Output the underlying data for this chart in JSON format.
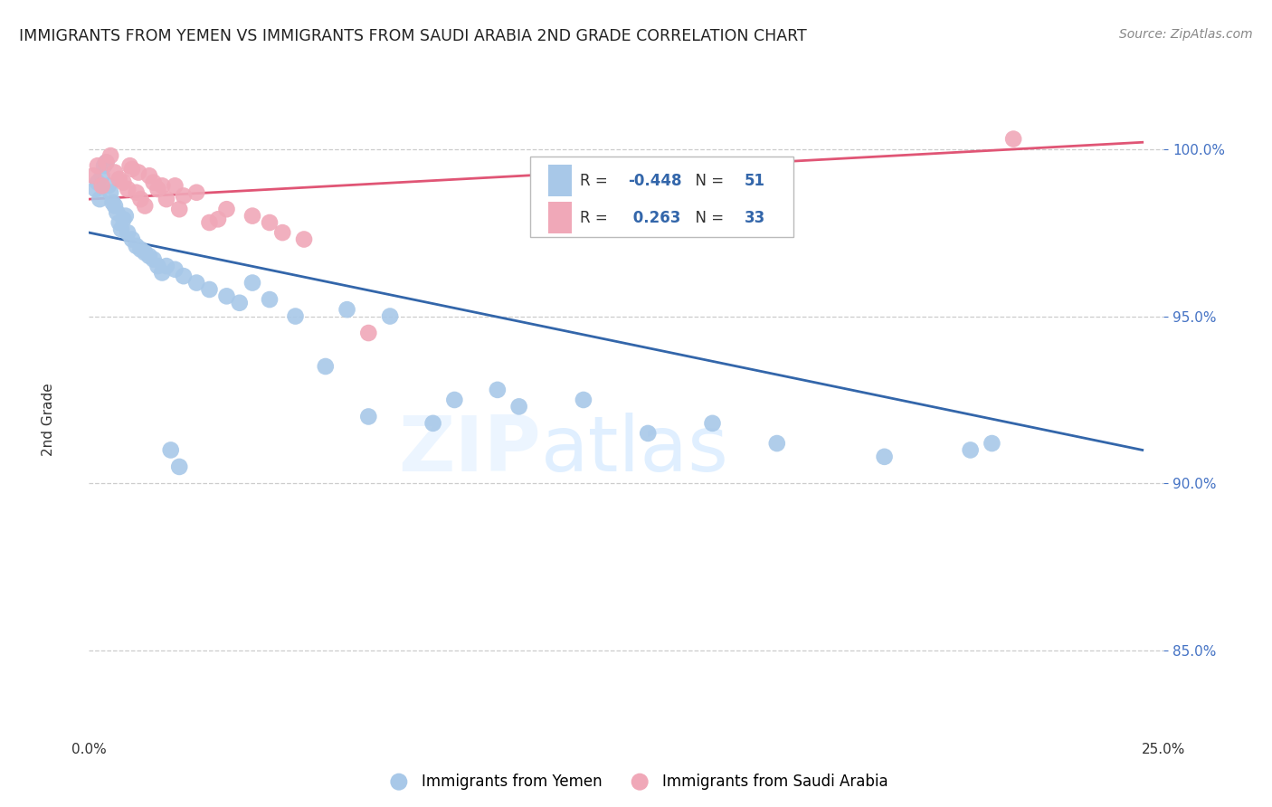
{
  "title": "IMMIGRANTS FROM YEMEN VS IMMIGRANTS FROM SAUDI ARABIA 2ND GRADE CORRELATION CHART",
  "source": "Source: ZipAtlas.com",
  "ylabel": "2nd Grade",
  "xmin": 0.0,
  "xmax": 25.0,
  "ymin": 82.5,
  "ymax": 101.8,
  "R_blue": -0.448,
  "N_blue": 51,
  "R_pink": 0.263,
  "N_pink": 33,
  "blue_color": "#a8c8e8",
  "pink_color": "#f0a8b8",
  "blue_line_color": "#3366aa",
  "pink_line_color": "#e05575",
  "legend_label_blue": "Immigrants from Yemen",
  "legend_label_pink": "Immigrants from Saudi Arabia",
  "blue_x": [
    0.15,
    0.2,
    0.25,
    0.3,
    0.35,
    0.4,
    0.45,
    0.5,
    0.55,
    0.6,
    0.65,
    0.7,
    0.75,
    0.8,
    0.85,
    0.9,
    1.0,
    1.1,
    1.2,
    1.3,
    1.4,
    1.5,
    1.6,
    1.7,
    1.8,
    2.0,
    2.2,
    2.5,
    2.8,
    3.2,
    3.5,
    3.8,
    4.2,
    4.8,
    5.5,
    6.0,
    7.0,
    8.5,
    9.5,
    10.0,
    11.5,
    13.0,
    14.5,
    16.0,
    18.5,
    21.0,
    1.9,
    2.1,
    6.5,
    8.0,
    20.5
  ],
  "blue_y": [
    98.8,
    99.0,
    98.5,
    99.2,
    99.5,
    99.6,
    98.9,
    98.7,
    98.4,
    98.3,
    98.1,
    97.8,
    97.6,
    97.9,
    98.0,
    97.5,
    97.3,
    97.1,
    97.0,
    96.9,
    96.8,
    96.7,
    96.5,
    96.3,
    96.5,
    96.4,
    96.2,
    96.0,
    95.8,
    95.6,
    95.4,
    96.0,
    95.5,
    95.0,
    93.5,
    95.2,
    95.0,
    92.5,
    92.8,
    92.3,
    92.5,
    91.5,
    91.8,
    91.2,
    90.8,
    91.2,
    91.0,
    90.5,
    92.0,
    91.8,
    91.0
  ],
  "pink_x": [
    0.1,
    0.2,
    0.3,
    0.4,
    0.5,
    0.6,
    0.7,
    0.8,
    0.9,
    1.0,
    1.1,
    1.2,
    1.3,
    1.4,
    1.5,
    1.6,
    1.8,
    2.0,
    2.2,
    2.5,
    2.8,
    3.2,
    3.8,
    4.5,
    5.0,
    1.15,
    0.95,
    2.1,
    1.7,
    3.0,
    6.5,
    4.2,
    21.5
  ],
  "pink_y": [
    99.2,
    99.5,
    98.9,
    99.6,
    99.8,
    99.3,
    99.1,
    99.0,
    98.8,
    99.4,
    98.7,
    98.5,
    98.3,
    99.2,
    99.0,
    98.8,
    98.5,
    98.9,
    98.6,
    98.7,
    97.8,
    98.2,
    98.0,
    97.5,
    97.3,
    99.3,
    99.5,
    98.2,
    98.9,
    97.9,
    94.5,
    97.8,
    100.3
  ],
  "blue_line_x0": 0.0,
  "blue_line_x1": 24.5,
  "blue_line_y0": 97.5,
  "blue_line_y1": 91.0,
  "pink_line_x0": 0.0,
  "pink_line_x1": 24.5,
  "pink_line_y0": 98.5,
  "pink_line_y1": 100.2
}
